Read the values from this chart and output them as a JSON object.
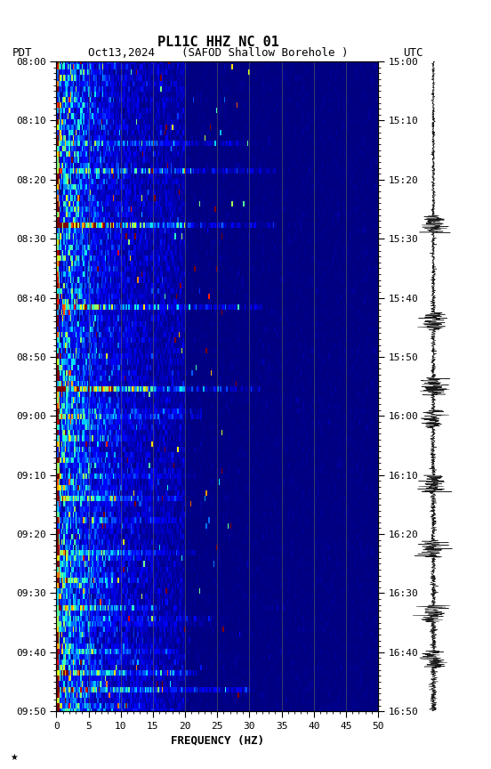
{
  "title_line1": "PL11C HHZ NC 01",
  "title_line2_left": "PDT",
  "title_line2_center": "Oct13,2024    (SAFOD Shallow Borehole )",
  "title_line2_right": "UTC",
  "xlabel": "FREQUENCY (HZ)",
  "freq_min": 0,
  "freq_max": 50,
  "freq_ticks": [
    0,
    5,
    10,
    15,
    20,
    25,
    30,
    35,
    40,
    45,
    50
  ],
  "time_ticks_left": [
    "08:00",
    "08:10",
    "08:20",
    "08:30",
    "08:40",
    "08:50",
    "09:00",
    "09:10",
    "09:20",
    "09:30",
    "09:40",
    "09:50"
  ],
  "time_ticks_right": [
    "15:00",
    "15:10",
    "15:20",
    "15:30",
    "15:40",
    "15:50",
    "16:00",
    "16:10",
    "16:20",
    "16:30",
    "16:40",
    "16:50"
  ],
  "n_time": 120,
  "n_freq": 250,
  "background_color": "#ffffff",
  "colormap": "jet",
  "vline_color": "#606060",
  "vline_freqs": [
    5,
    10,
    15,
    20,
    25,
    30,
    35,
    40,
    45
  ],
  "waveform_color": "#000000",
  "fig_width": 5.52,
  "fig_height": 8.64,
  "dpi": 100
}
